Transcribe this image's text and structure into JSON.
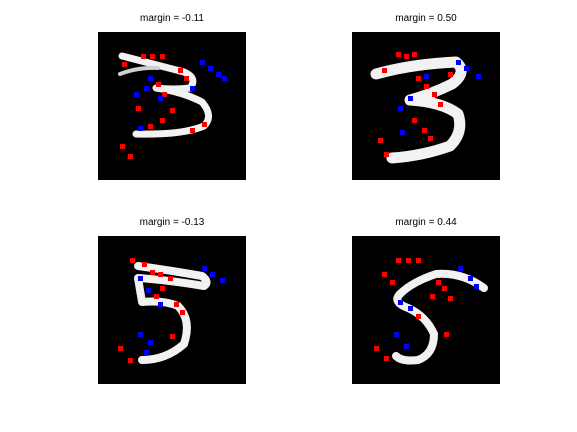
{
  "figure": {
    "panels": [
      {
        "title": "margin = -0.11"
      },
      {
        "title": "margin = 0.50"
      },
      {
        "title": "margin = -0.13"
      },
      {
        "title": "margin = 0.44"
      }
    ]
  },
  "colors": {
    "background": "#000000",
    "stroke": "#ffffff",
    "positive_marker": "#ff0000",
    "negative_marker": "#0000ff"
  }
}
